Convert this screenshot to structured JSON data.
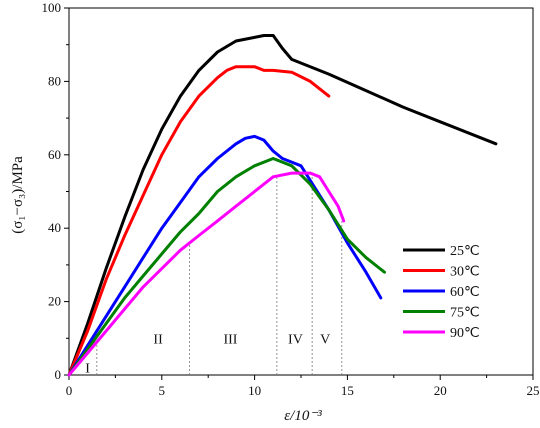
{
  "chart_data": {
    "type": "line",
    "xlabel": "ε/10⁻³",
    "ylabel": "(σ₁−σ₃)/MPa",
    "xlim": [
      0,
      25
    ],
    "ylim": [
      0,
      100
    ],
    "xticks": [
      "0",
      "5",
      "10",
      "15",
      "20",
      "25"
    ],
    "yticks": [
      "0",
      "20",
      "40",
      "60",
      "80",
      "100"
    ],
    "legend_position": "right-middle",
    "grid": false,
    "series": [
      {
        "name": "25℃",
        "color": "#000000",
        "x": [
          0,
          1,
          2,
          3,
          4,
          5,
          6,
          7,
          8,
          9,
          10,
          10.5,
          11,
          11.5,
          12,
          14,
          16,
          18,
          20,
          23
        ],
        "y": [
          0,
          14,
          29,
          43,
          56,
          67,
          76,
          83,
          88,
          91,
          92,
          92.5,
          92.5,
          89,
          86,
          82,
          77.5,
          73,
          69,
          63
        ]
      },
      {
        "name": "30℃",
        "color": "#ff0000",
        "x": [
          0,
          1,
          2,
          3,
          4,
          5,
          6,
          7,
          8,
          8.5,
          9,
          9.5,
          10,
          10.5,
          11,
          12,
          13,
          14
        ],
        "y": [
          0,
          12,
          26,
          38,
          49,
          60,
          69,
          76,
          81,
          83,
          84,
          84,
          84,
          83,
          83,
          82.5,
          80,
          76
        ]
      },
      {
        "name": "60℃",
        "color": "#0000ff",
        "x": [
          0,
          1,
          2,
          3,
          4,
          5,
          6,
          7,
          8,
          9,
          9.5,
          10,
          10.5,
          11,
          11.5,
          12,
          12.5,
          13,
          14,
          15,
          16,
          16.8
        ],
        "y": [
          0,
          8,
          16,
          24,
          32,
          40,
          47,
          54,
          59,
          63,
          64.5,
          65,
          64,
          61,
          59,
          58,
          57,
          53,
          45,
          36,
          28,
          21
        ]
      },
      {
        "name": "75℃",
        "color": "#008000",
        "x": [
          0,
          1,
          2,
          3,
          4,
          5,
          6,
          7,
          8,
          9,
          10,
          11,
          12,
          13,
          14,
          15,
          16,
          17
        ],
        "y": [
          0,
          7,
          14,
          21,
          27,
          33,
          39,
          44,
          50,
          54,
          57,
          59,
          57,
          52,
          45,
          37,
          32,
          28
        ]
      },
      {
        "name": "90℃",
        "color": "#ff00ff",
        "x": [
          0,
          1,
          2,
          3,
          4,
          5,
          6,
          7,
          8,
          9,
          10,
          11,
          12,
          13,
          13.5,
          14,
          14.5,
          14.8
        ],
        "y": [
          0,
          6,
          12,
          18,
          24,
          29,
          34,
          38,
          42,
          46,
          50,
          54,
          55,
          55,
          54,
          50,
          46,
          42
        ]
      }
    ],
    "stage_lines": [
      1.5,
      6.5,
      11.2,
      13.1,
      14.7
    ],
    "stage_labels": [
      {
        "text": "I",
        "x": 1.0,
        "y": 2
      },
      {
        "text": "II",
        "x": 4.8,
        "y": 10
      },
      {
        "text": "III",
        "x": 8.7,
        "y": 10
      },
      {
        "text": "IV",
        "x": 12.2,
        "y": 10
      },
      {
        "text": "V",
        "x": 13.8,
        "y": 10
      }
    ]
  }
}
